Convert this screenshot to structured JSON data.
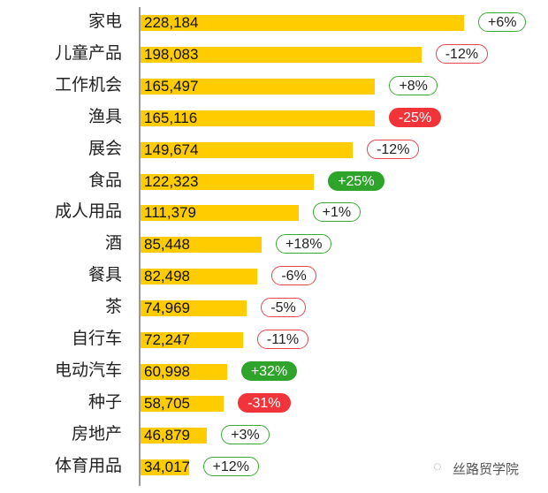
{
  "chart_data": {
    "type": "bar",
    "orientation": "horizontal",
    "categories": [
      "家电",
      "儿童产品",
      "工作机会",
      "渔具",
      "展会",
      "食品",
      "成人用品",
      "酒",
      "餐具",
      "茶",
      "自行车",
      "电动汽车",
      "种子",
      "房地产",
      "体育用品"
    ],
    "values": [
      228184,
      198083,
      165497,
      165116,
      149674,
      122323,
      111379,
      85448,
      82498,
      74969,
      72247,
      60998,
      58705,
      46879,
      34017
    ],
    "value_labels": [
      "228,184",
      "198,083",
      "165,497",
      "165,116",
      "149,674",
      "122,323",
      "111,379",
      "85,448",
      "82,498",
      "74,969",
      "72,247",
      "60,998",
      "58,705",
      "46,879",
      "34,017"
    ],
    "changes": [
      "+6%",
      "-12%",
      "+8%",
      "-25%",
      "-12%",
      "+25%",
      "+1%",
      "+18%",
      "-6%",
      "-5%",
      "-11%",
      "+32%",
      "-31%",
      "+3%",
      "+12%"
    ],
    "change_badge_filled": [
      false,
      false,
      false,
      true,
      false,
      true,
      false,
      false,
      false,
      false,
      false,
      true,
      true,
      false,
      false
    ],
    "xlim": [
      0,
      228184
    ],
    "grid": false,
    "colors": {
      "bar": "#ffcc00",
      "positive": "#3aaa35",
      "negative": "#e8464c",
      "positive_fill": "#2ea52a",
      "negative_fill": "#f0343a"
    }
  },
  "watermark": {
    "text": "丝路贸学院",
    "icon": "wechat-icon"
  }
}
